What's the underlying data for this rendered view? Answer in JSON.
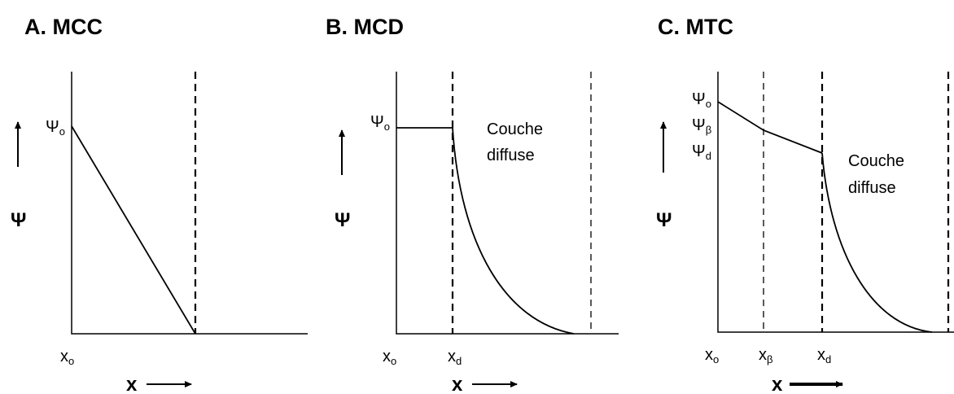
{
  "panels": [
    {
      "title": "A. MCC",
      "y_axis": "Ψ",
      "x_axis": "x",
      "labels": [
        {
          "base": "Ψ",
          "sub": "o"
        },
        {
          "base": "x",
          "sub": "o"
        }
      ]
    },
    {
      "title": "B. MCD",
      "y_axis": "Ψ",
      "x_axis": "x",
      "labels": [
        {
          "base": "Ψ",
          "sub": "o"
        },
        {
          "base": "x",
          "sub": "o"
        },
        {
          "base": "x",
          "sub": "d"
        }
      ],
      "layer": [
        "Couche",
        "diffuse"
      ]
    },
    {
      "title": "C. MTC",
      "y_axis": "Ψ",
      "x_axis": "x",
      "labels": [
        {
          "base": "Ψ",
          "sub": "o"
        },
        {
          "base": "Ψ",
          "sub": "β"
        },
        {
          "base": "Ψ",
          "sub": "d"
        },
        {
          "base": "x",
          "sub": "o"
        },
        {
          "base": "x",
          "sub": "β"
        },
        {
          "base": "x",
          "sub": "d"
        }
      ],
      "layer": [
        "Couche",
        "diffuse"
      ]
    }
  ]
}
